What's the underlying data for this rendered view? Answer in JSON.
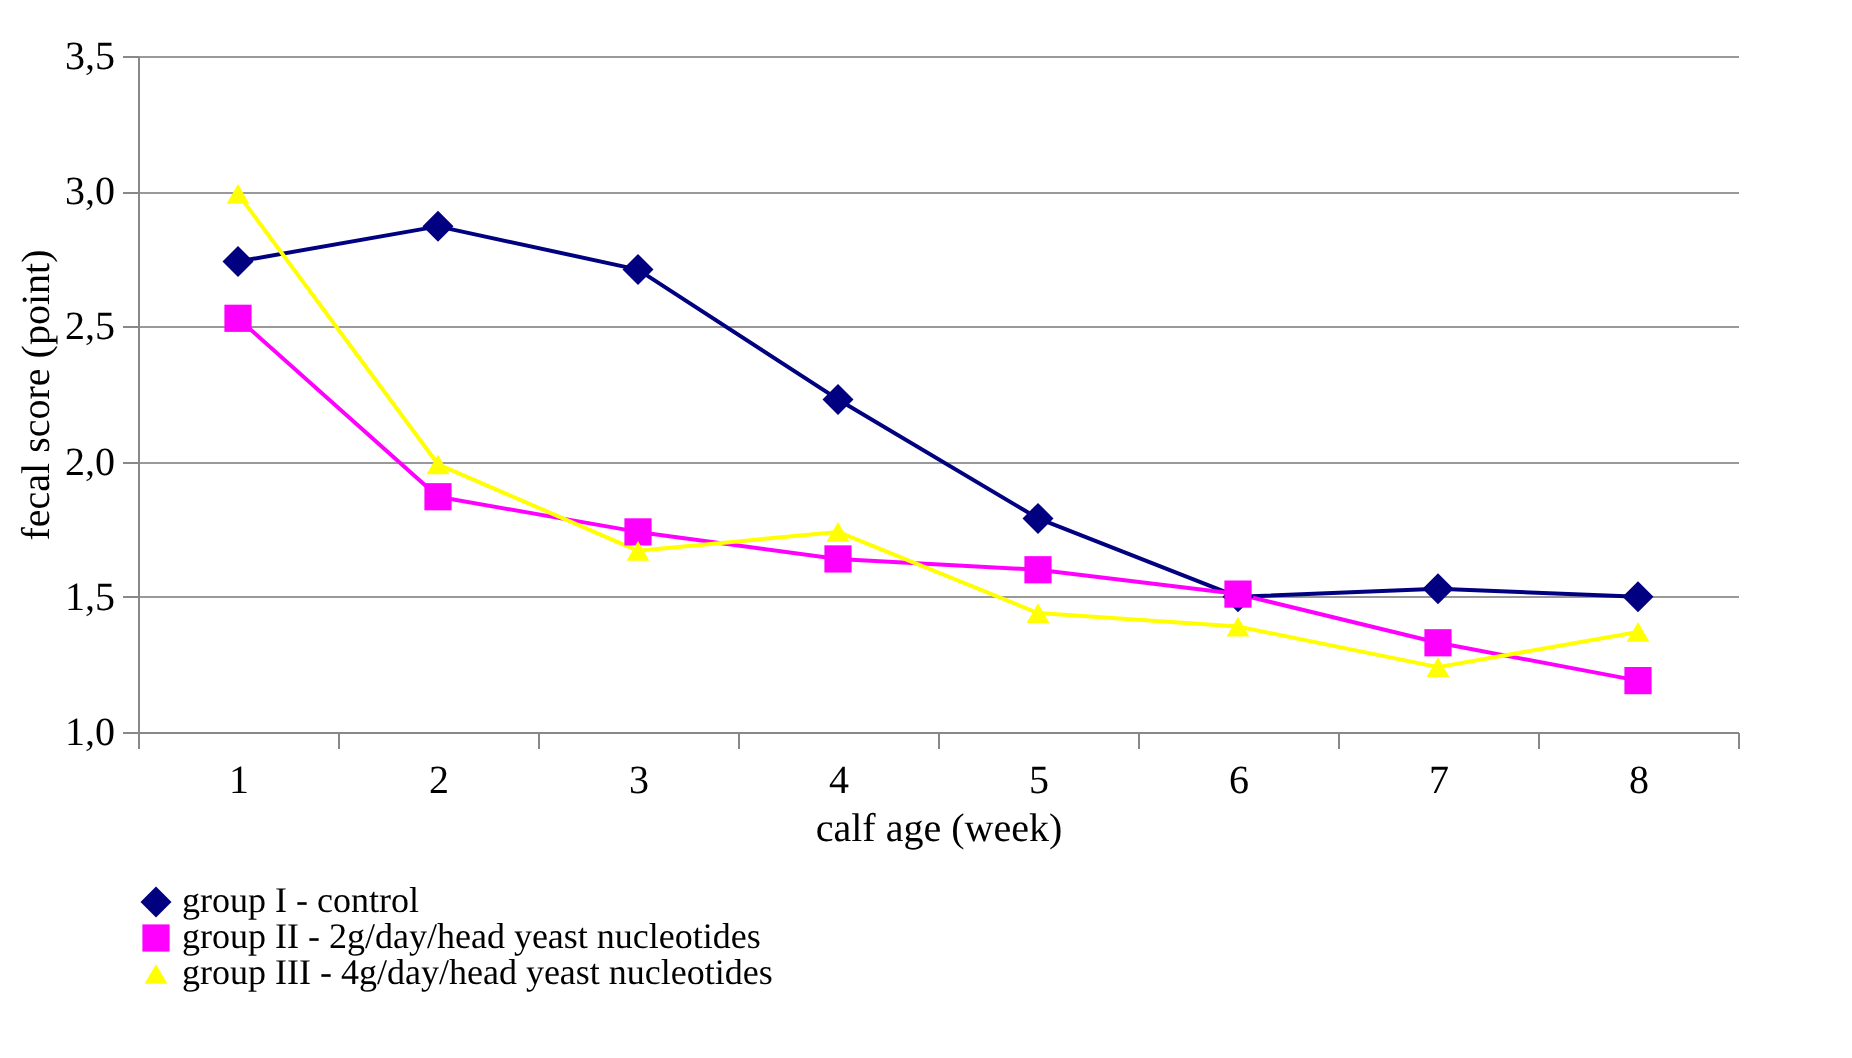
{
  "chart_data": {
    "type": "line",
    "xlabel": "calf age (week)",
    "ylabel": "fecal score (point)",
    "categories": [
      "1",
      "2",
      "3",
      "4",
      "5",
      "6",
      "7",
      "8"
    ],
    "series": [
      {
        "name": "group I - control",
        "color": "#000080",
        "marker": "diamond",
        "values": [
          2.74,
          2.87,
          2.71,
          2.23,
          1.79,
          1.5,
          1.53,
          1.5
        ]
      },
      {
        "name": "group II - 2g/day/head yeast nucleotides",
        "color": "#ff00ff",
        "marker": "square",
        "values": [
          2.53,
          1.87,
          1.74,
          1.64,
          1.6,
          1.51,
          1.33,
          1.19
        ]
      },
      {
        "name": "group III - 4g/day/head yeast nucleotides",
        "color": "#ffff00",
        "marker": "triangle",
        "values": [
          2.99,
          1.99,
          1.67,
          1.74,
          1.44,
          1.39,
          1.24,
          1.37
        ]
      }
    ],
    "ylim": [
      1.0,
      3.5
    ],
    "yticks": [
      {
        "value": 1.0,
        "label": "1,0"
      },
      {
        "value": 1.5,
        "label": "1,5"
      },
      {
        "value": 2.0,
        "label": "2,0"
      },
      {
        "value": 2.5,
        "label": "2,5"
      },
      {
        "value": 3.0,
        "label": "3,0"
      },
      {
        "value": 3.5,
        "label": "3,5"
      }
    ],
    "grid": "y",
    "legend": "bottom",
    "line_style": "solid"
  }
}
